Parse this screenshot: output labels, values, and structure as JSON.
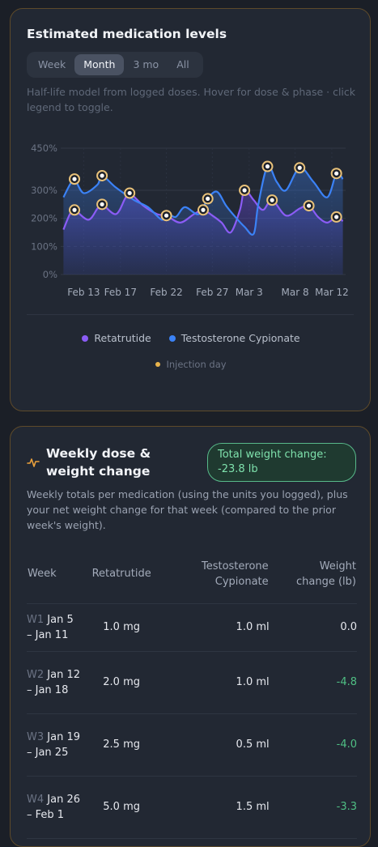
{
  "card1": {
    "title": "Estimated medication levels",
    "tabs": [
      {
        "label": "Week",
        "active": false
      },
      {
        "label": "Month",
        "active": true
      },
      {
        "label": "3 mo",
        "active": false
      },
      {
        "label": "All",
        "active": false
      }
    ],
    "subtitle": "Half-life model from logged doses. Hover for dose & phase · click legend to toggle.",
    "legend": [
      {
        "label": "Retatrutide",
        "color": "#8b5cf6"
      },
      {
        "label": "Testosterone Cypionate",
        "color": "#3b82f6"
      }
    ],
    "injection_legend": {
      "label": "Injection day",
      "color": "#e9b44c"
    }
  },
  "chart_data": {
    "type": "line",
    "y_ticks": [
      "450%",
      "300%",
      "200%",
      "100%",
      "0%"
    ],
    "y_tick_values": [
      450,
      300,
      200,
      100,
      0
    ],
    "ylim": [
      0,
      450
    ],
    "x_ticks": [
      "Feb 13",
      "Feb 17",
      "Feb 22",
      "Feb 27",
      "Mar 3",
      "Mar 8",
      "Mar 12"
    ],
    "x_tick_days": [
      13,
      17,
      22,
      27,
      31,
      36,
      40
    ],
    "xlim": [
      10.5,
      41.5
    ],
    "grid": true,
    "series": [
      {
        "name": "Testosterone Cypionate",
        "color": "#3b82f6",
        "points": [
          [
            10.8,
            275
          ],
          [
            11.5,
            320
          ],
          [
            12,
            340
          ],
          [
            13,
            290
          ],
          [
            14.5,
            320
          ],
          [
            15,
            352
          ],
          [
            16.5,
            310
          ],
          [
            18.5,
            265
          ],
          [
            20,
            240
          ],
          [
            21.5,
            195
          ],
          [
            22,
            220
          ],
          [
            23,
            205
          ],
          [
            24,
            240
          ],
          [
            25.5,
            215
          ],
          [
            26.5,
            270
          ],
          [
            27.5,
            295
          ],
          [
            28.5,
            245
          ],
          [
            29.5,
            205
          ],
          [
            30.5,
            170
          ],
          [
            31.5,
            145
          ],
          [
            32,
            250
          ],
          [
            33,
            385
          ],
          [
            34,
            330
          ],
          [
            35,
            300
          ],
          [
            36.5,
            380
          ],
          [
            38,
            330
          ],
          [
            39.5,
            275
          ],
          [
            40.5,
            360
          ],
          [
            41.2,
            340
          ]
        ],
        "injections": [
          12,
          15,
          26.5,
          33,
          36.5,
          40.5
        ]
      },
      {
        "name": "Retatrutide",
        "color": "#8b5cf6",
        "points": [
          [
            10.8,
            160
          ],
          [
            11.5,
            215
          ],
          [
            12,
            230
          ],
          [
            13.5,
            195
          ],
          [
            14.5,
            235
          ],
          [
            15,
            250
          ],
          [
            16.5,
            215
          ],
          [
            17.5,
            270
          ],
          [
            18,
            290
          ],
          [
            19.5,
            245
          ],
          [
            21,
            215
          ],
          [
            22,
            210
          ],
          [
            23.5,
            185
          ],
          [
            25,
            215
          ],
          [
            26,
            230
          ],
          [
            27,
            210
          ],
          [
            28,
            185
          ],
          [
            29,
            150
          ],
          [
            30,
            230
          ],
          [
            30.5,
            300
          ],
          [
            31.5,
            265
          ],
          [
            32.5,
            230
          ],
          [
            33.5,
            265
          ],
          [
            35,
            210
          ],
          [
            36.5,
            235
          ],
          [
            37.5,
            245
          ],
          [
            38.5,
            205
          ],
          [
            39.5,
            185
          ],
          [
            40.5,
            205
          ],
          [
            41.2,
            190
          ]
        ],
        "injections": [
          12,
          15,
          18,
          22,
          26,
          30.5,
          33.5,
          37.5,
          40.5
        ]
      }
    ]
  },
  "card2": {
    "title": "Weekly dose & weight change",
    "badge": "Total weight change: -23.8 lb",
    "description": "Weekly totals per medication (using the units you logged), plus your net weight change for that week (compared to the prior week's weight).",
    "columns": [
      "Week",
      "Retatrutide",
      "Testosterone Cypionate",
      "Weight change (lb)"
    ],
    "rows": [
      {
        "tag": "W1",
        "range": "Jan 5 – Jan 11",
        "reta": "1.0 mg",
        "testo": "1.0 ml",
        "weight": "0.0",
        "neg": false
      },
      {
        "tag": "W2",
        "range": "Jan 12 – Jan 18",
        "reta": "2.0 mg",
        "testo": "1.0 ml",
        "weight": "-4.8",
        "neg": true
      },
      {
        "tag": "W3",
        "range": "Jan 19 – Jan 25",
        "reta": "2.5 mg",
        "testo": "0.5 ml",
        "weight": "-4.0",
        "neg": true
      },
      {
        "tag": "W4",
        "range": "Jan 26 – Feb 1",
        "reta": "5.0 mg",
        "testo": "1.5 ml",
        "weight": "-3.3",
        "neg": true
      }
    ]
  }
}
